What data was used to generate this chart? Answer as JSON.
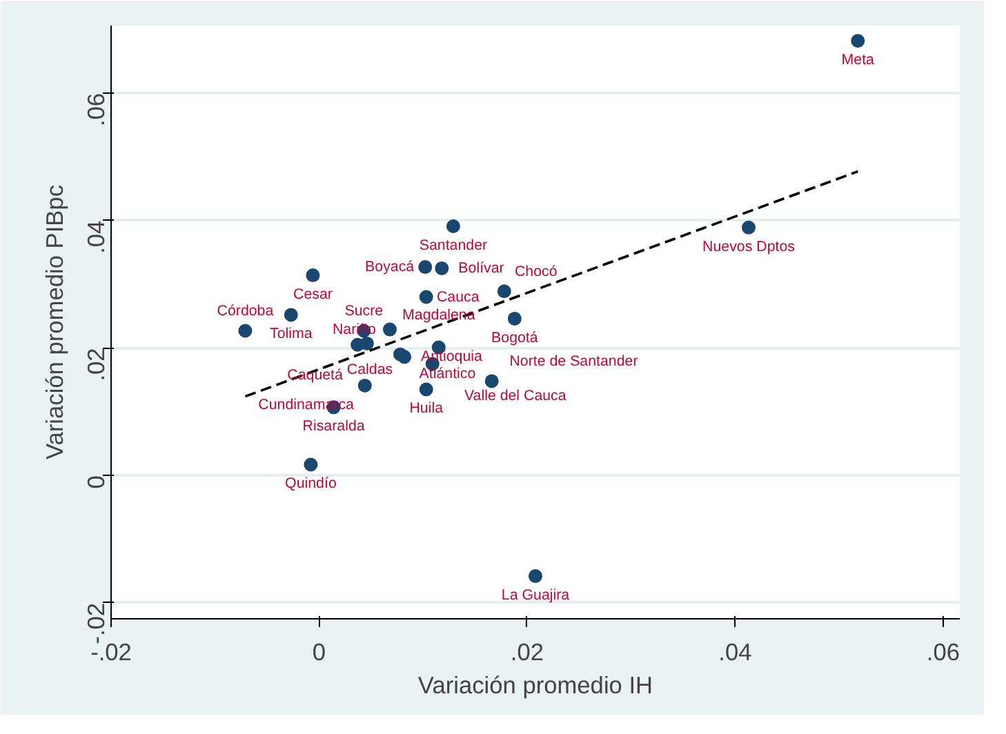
{
  "chart_data": {
    "type": "scatter",
    "xlabel": "Variación promedio IH",
    "ylabel": "Variación promedio PIBpc",
    "xlim": [
      -0.02,
      0.0616
    ],
    "ylim": [
      -0.0225,
      0.0706
    ],
    "xticks": [
      {
        "value": -0.02,
        "label": "-.02"
      },
      0,
      {
        "value": 0.02,
        "label": ".02"
      },
      {
        "value": 0.04,
        "label": ".04"
      },
      {
        "value": 0.06,
        "label": ".06"
      }
    ],
    "yticks": [
      {
        "value": -0.02,
        "label": "-.02"
      },
      0,
      {
        "value": 0.02,
        "label": ".02"
      },
      {
        "value": 0.04,
        "label": ".04"
      },
      {
        "value": 0.06,
        "label": ".06"
      }
    ],
    "grid": "y",
    "marker": "circle",
    "series": [
      {
        "type": "scatter",
        "color": "#1a476f",
        "x": [
          0.0518,
          0.0413,
          0.0129,
          -0.0006,
          0.0102,
          0.0118,
          0.0103,
          0.0178,
          0.0188,
          -0.0027,
          -0.0071,
          0.0043,
          0.0068,
          0.0037,
          0.0046,
          0.0078,
          0.0082,
          0.0115,
          0.0109,
          0.0166,
          0.0103,
          0.0044,
          0.0014,
          -0.0008,
          0.0208
        ],
        "values": [
          0.0682,
          0.0389,
          0.0391,
          0.0314,
          0.0327,
          0.0325,
          0.028,
          0.0289,
          0.0246,
          0.0252,
          0.0227,
          0.0227,
          0.0229,
          0.0205,
          0.0207,
          0.019,
          0.0186,
          0.0201,
          0.0175,
          0.0148,
          0.0135,
          0.0141,
          0.0107,
          0.0017,
          -0.0158
        ]
      },
      {
        "type": "line",
        "color": "#000000",
        "line_style": "dashed",
        "marker": "none",
        "x": [
          -0.0071,
          0.0518
        ],
        "values": [
          0.0124,
          0.0477
        ]
      }
    ],
    "annotations": [
      {
        "text": "Meta",
        "x": 0.0518,
        "y": 0.0682
      },
      {
        "text": "Nuevos Dptos",
        "x": 0.0413,
        "y": 0.0389
      },
      {
        "text": "Santander",
        "x": 0.0129,
        "y": 0.0391
      },
      {
        "text": "Cesar",
        "x": -0.0006,
        "y": 0.0314
      },
      {
        "text": "Boyacá",
        "x": 0.0102,
        "y": 0.0327
      },
      {
        "text": "Bolívar",
        "x": 0.0118,
        "y": 0.0325
      },
      {
        "text": "Cauca",
        "x": 0.0103,
        "y": 0.028
      },
      {
        "text": "Chocó",
        "x": 0.0178,
        "y": 0.0289
      },
      {
        "text": "Bogotá",
        "x": 0.0188,
        "y": 0.0246
      },
      {
        "text": "Tolima",
        "x": -0.0027,
        "y": 0.0252
      },
      {
        "text": "Córdoba",
        "x": -0.0071,
        "y": 0.0227
      },
      {
        "text": "Sucre",
        "x": 0.0043,
        "y": 0.0227
      },
      {
        "text": "Nariño",
        "x": 0.0068,
        "y": 0.0229
      },
      {
        "text": "Caldas",
        "x": 0.0037,
        "y": 0.0205
      },
      {
        "text": "Caquetá",
        "x": 0.0046,
        "y": 0.0207
      },
      {
        "text": "Atlántico",
        "x": 0.0078,
        "y": 0.019
      },
      {
        "text": "Antioquia",
        "x": 0.0082,
        "y": 0.0186
      },
      {
        "text": "Magdalena",
        "x": 0.0115,
        "y": 0.0201
      },
      {
        "text": "Valle del Cauca",
        "x": 0.0109,
        "y": 0.0175
      },
      {
        "text": "Norte de Santander",
        "x": 0.0166,
        "y": 0.0148
      },
      {
        "text": "Huila",
        "x": 0.0103,
        "y": 0.0135
      },
      {
        "text": "Cundinamarca",
        "x": 0.0044,
        "y": 0.0141
      },
      {
        "text": "Risaralda",
        "x": 0.0014,
        "y": 0.0107
      },
      {
        "text": "Quindío",
        "x": -0.0008,
        "y": 0.0017
      },
      {
        "text": "La Guajira",
        "x": 0.0208,
        "y": -0.0158
      }
    ]
  }
}
